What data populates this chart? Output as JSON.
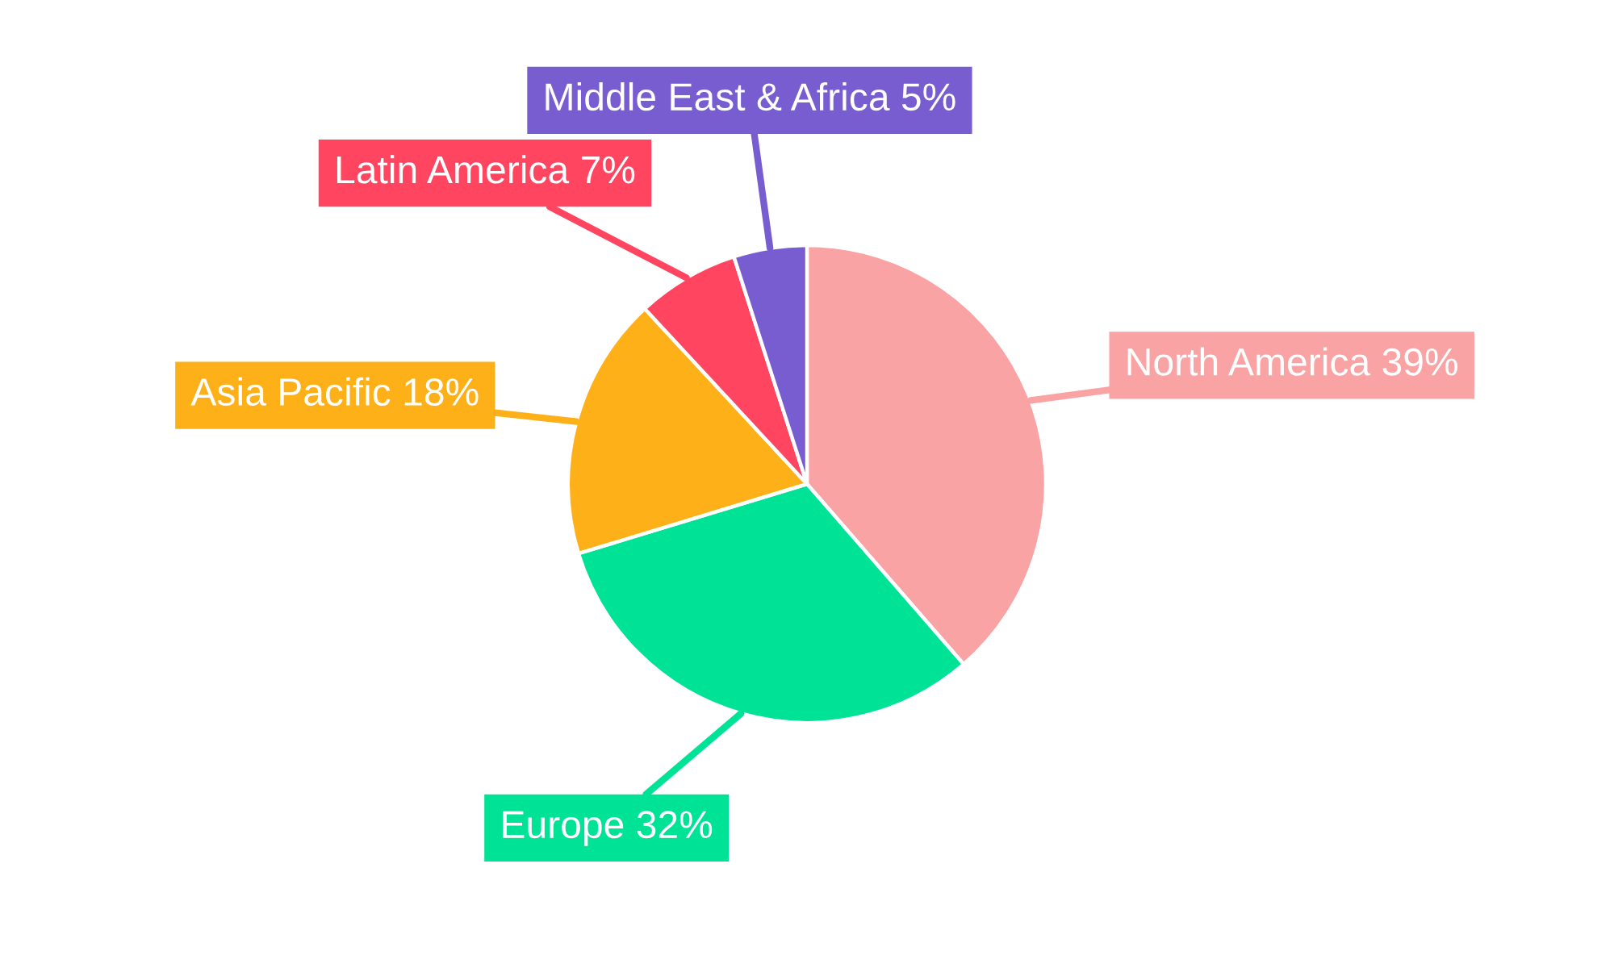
{
  "chart_data": {
    "type": "pie",
    "categories": [
      "North America",
      "Europe",
      "Asia Pacific",
      "Latin America",
      "Middle East & Africa"
    ],
    "values": [
      39,
      32,
      18,
      7,
      5
    ],
    "value_labels": [
      "39%",
      "32%",
      "18%",
      "7%",
      "5%"
    ],
    "colors": [
      "#f9a3a4",
      "#00e396",
      "#feb019",
      "#ff4560",
      "#775dd0"
    ]
  }
}
